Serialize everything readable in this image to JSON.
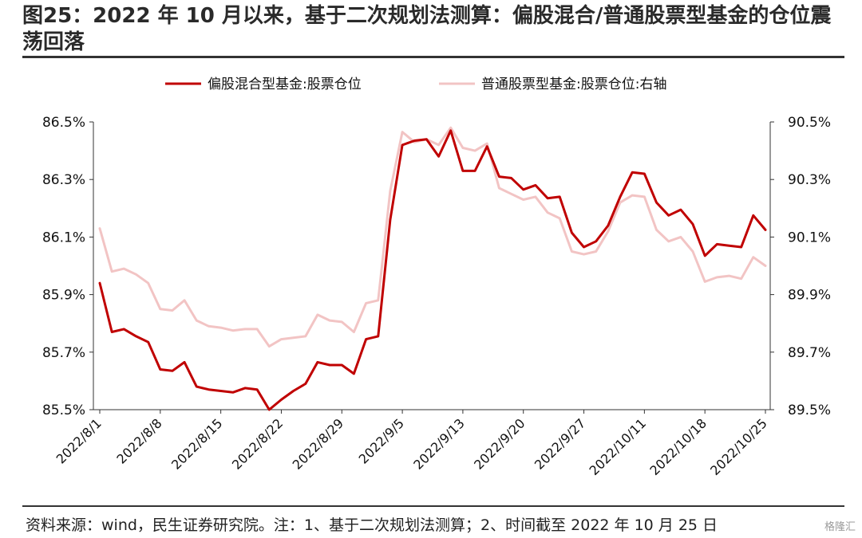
{
  "figure": {
    "title": "图25：2022 年 10 月以来，基于二次规划法测算：偏股混合/普通股票型基金的仓位震荡回落",
    "source": "资料来源：wind，民生证券研究院。注：1、基于二次规划法测算；2、时间截至 2022 年 10 月 25 日",
    "watermark": "格隆汇"
  },
  "chart_data": {
    "type": "line",
    "x_ticks": [
      "2022/8/1",
      "2022/8/8",
      "2022/8/15",
      "2022/8/22",
      "2022/8/29",
      "2022/9/5",
      "2022/9/13",
      "2022/9/20",
      "2022/9/27",
      "2022/10/11",
      "2022/10/18",
      "2022/10/25"
    ],
    "x": [
      "2022/8/1",
      "2022/8/2",
      "2022/8/3",
      "2022/8/4",
      "2022/8/5",
      "2022/8/8",
      "2022/8/9",
      "2022/8/10",
      "2022/8/11",
      "2022/8/12",
      "2022/8/15",
      "2022/8/16",
      "2022/8/17",
      "2022/8/18",
      "2022/8/19",
      "2022/8/22",
      "2022/8/23",
      "2022/8/24",
      "2022/8/25",
      "2022/8/26",
      "2022/8/29",
      "2022/8/30",
      "2022/8/31",
      "2022/9/1",
      "2022/9/2",
      "2022/9/5",
      "2022/9/6",
      "2022/9/7",
      "2022/9/8",
      "2022/9/9",
      "2022/9/13",
      "2022/9/14",
      "2022/9/15",
      "2022/9/16",
      "2022/9/19",
      "2022/9/20",
      "2022/9/21",
      "2022/9/22",
      "2022/9/23",
      "2022/9/26",
      "2022/9/27",
      "2022/9/28",
      "2022/9/29",
      "2022/9/30",
      "2022/10/10",
      "2022/10/11",
      "2022/10/12",
      "2022/10/13",
      "2022/10/14",
      "2022/10/17",
      "2022/10/18",
      "2022/10/19",
      "2022/10/20",
      "2022/10/21",
      "2022/10/24",
      "2022/10/25"
    ],
    "series": [
      {
        "name": "偏股混合型基金:股票仓位",
        "axis": "left",
        "color": "#c00000",
        "values": [
          85.94,
          85.77,
          85.78,
          85.755,
          85.735,
          85.64,
          85.635,
          85.665,
          85.58,
          85.57,
          85.565,
          85.56,
          85.575,
          85.57,
          85.5,
          85.535,
          85.565,
          85.59,
          85.665,
          85.655,
          85.655,
          85.625,
          85.745,
          85.755,
          86.16,
          86.42,
          86.435,
          86.44,
          86.38,
          86.47,
          86.33,
          86.33,
          86.415,
          86.31,
          86.305,
          86.265,
          86.28,
          86.235,
          86.24,
          86.115,
          86.065,
          86.085,
          86.14,
          86.24,
          86.325,
          86.32,
          86.22,
          86.175,
          86.195,
          86.145,
          86.035,
          86.075,
          86.07,
          86.065,
          86.175,
          86.125
        ]
      },
      {
        "name": "普通股票型基金:股票仓位:右轴",
        "axis": "right",
        "color": "#f2c4c4",
        "values": [
          90.13,
          89.98,
          89.99,
          89.97,
          89.94,
          89.85,
          89.845,
          89.88,
          89.81,
          89.79,
          89.785,
          89.775,
          89.78,
          89.78,
          89.72,
          89.745,
          89.75,
          89.755,
          89.83,
          89.81,
          89.805,
          89.77,
          89.87,
          89.88,
          90.26,
          90.465,
          90.43,
          90.44,
          90.42,
          90.48,
          90.41,
          90.4,
          90.425,
          90.27,
          90.25,
          90.23,
          90.24,
          90.185,
          90.165,
          90.05,
          90.04,
          90.05,
          90.12,
          90.22,
          90.245,
          90.24,
          90.125,
          90.085,
          90.1,
          90.05,
          89.945,
          89.96,
          89.965,
          89.955,
          90.03,
          90.0
        ]
      }
    ],
    "left_axis": {
      "ylim": [
        85.5,
        86.5
      ],
      "ticks": [
        "85.5%",
        "85.7%",
        "85.9%",
        "86.1%",
        "86.3%",
        "86.5%"
      ]
    },
    "right_axis": {
      "ylim": [
        89.5,
        90.5
      ],
      "ticks": [
        "89.5%",
        "89.7%",
        "89.9%",
        "90.1%",
        "90.3%",
        "90.5%"
      ]
    },
    "legend_position": "top",
    "grid": false
  }
}
